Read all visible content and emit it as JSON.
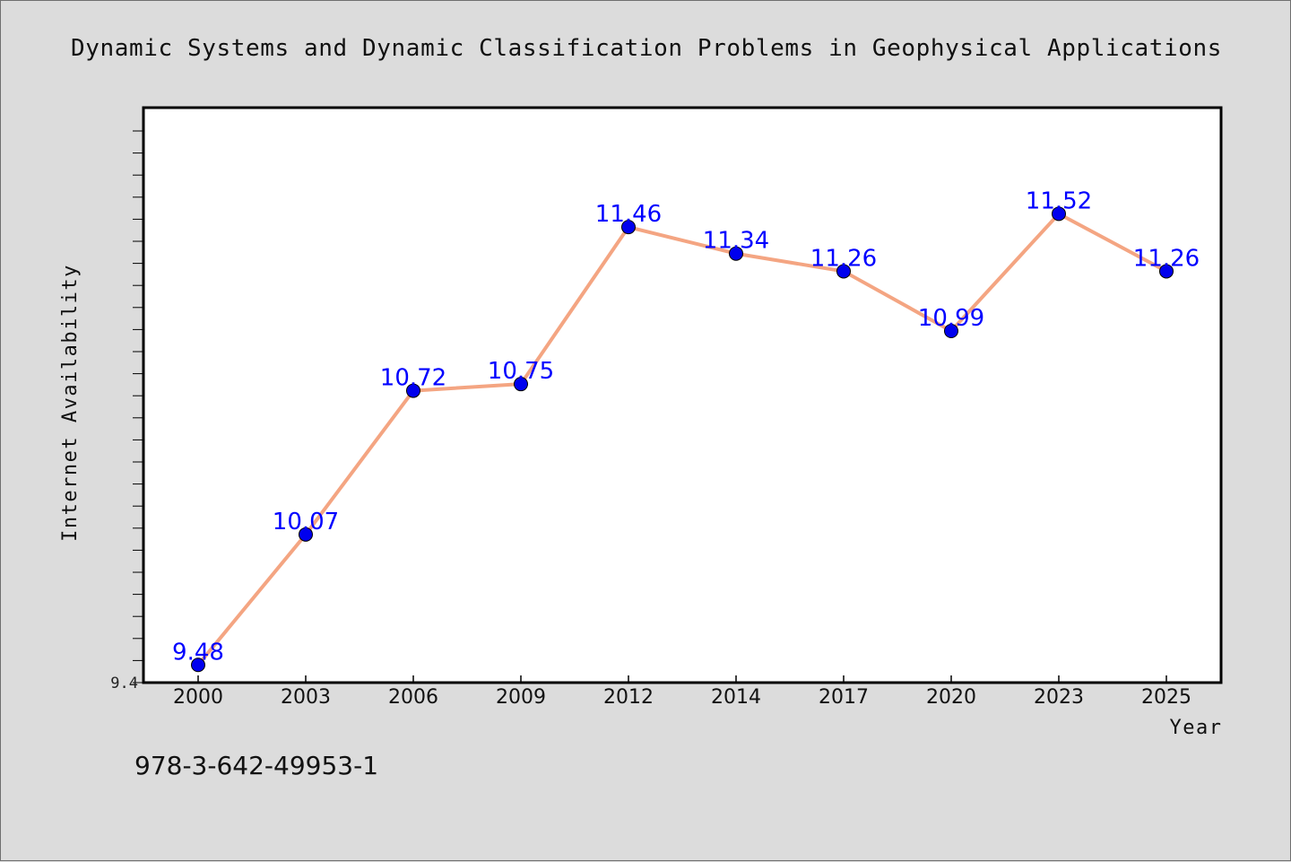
{
  "chart_data": {
    "type": "line",
    "title": "Dynamic Systems and Dynamic Classification Problems in Geophysical Applications",
    "xlabel": "Year",
    "ylabel": "Internet Availability",
    "categories": [
      "2000",
      "2003",
      "2006",
      "2009",
      "2012",
      "2014",
      "2017",
      "2020",
      "2023",
      "2025"
    ],
    "series": [
      {
        "values": [
          9.48,
          10.07,
          10.72,
          10.75,
          11.46,
          11.34,
          11.26,
          10.99,
          11.52,
          11.26
        ],
        "labels": [
          "9.48",
          "10.07",
          "10.72",
          "10.75",
          "11.46",
          "11.34",
          "11.26",
          "10.99",
          "11.52",
          "11.26"
        ],
        "line_color": "#f4a582",
        "marker_color": "#0000ee",
        "label_color": "#0000ff"
      }
    ],
    "ylim": [
      9.4,
      12.0
    ],
    "yticks": [
      "9.4"
    ],
    "grid": false,
    "legend": "none"
  },
  "footnote": "978-3-642-49953-1",
  "colors": {
    "background": "#dcdcdc",
    "plot_background": "#ffffff",
    "line": "#f4a582",
    "marker": "#0000ee",
    "data_label": "#0000ff"
  }
}
